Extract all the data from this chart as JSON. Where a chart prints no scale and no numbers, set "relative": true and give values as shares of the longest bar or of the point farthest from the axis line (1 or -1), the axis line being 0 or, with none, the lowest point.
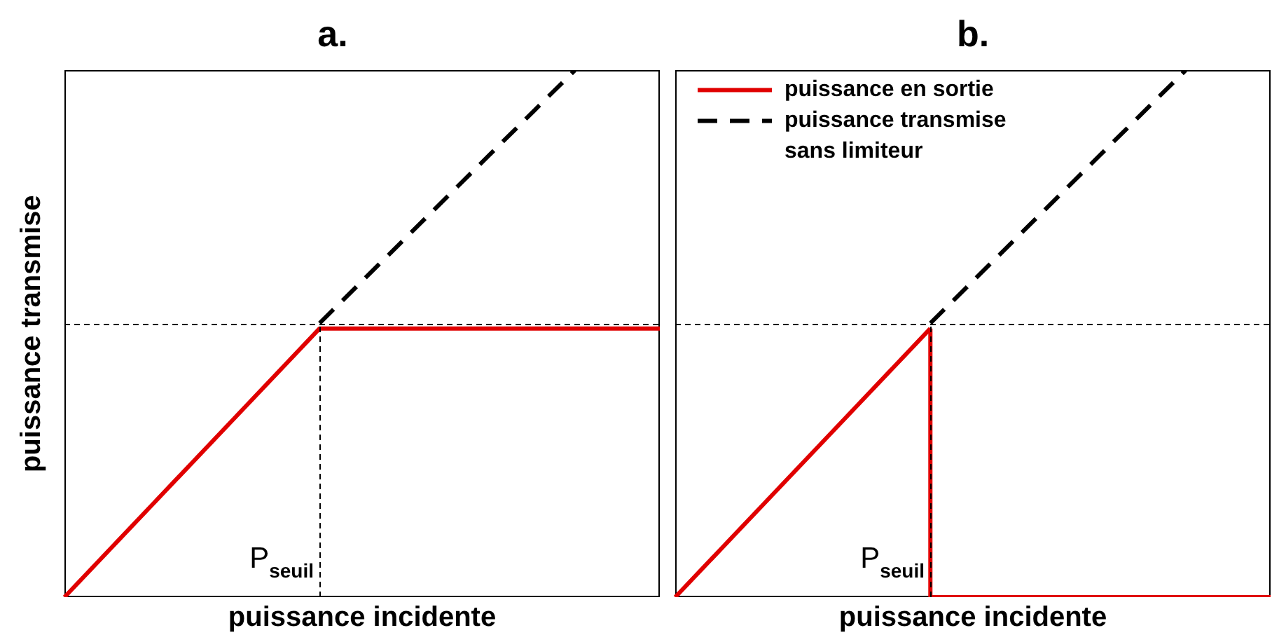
{
  "chart_data": [
    {
      "type": "line",
      "title": "a.",
      "xlabel": "puissance incidente",
      "ylabel": "puissance transmise",
      "categories": [
        null,
        null,
        null,
        null,
        null,
        null,
        null,
        null
      ],
      "relative": true,
      "marker": "none",
      "line_style": "solid",
      "grid": false,
      "tick_labels": false,
      "series": [
        {
          "color": "#e00000",
          "values": [
            0,
            0.17,
            0.34,
            0.51,
            0.51,
            0.51,
            0.51,
            0.51
          ]
        },
        {
          "color": "#000000",
          "line_style": "dashed",
          "values": [
            null,
            null,
            null,
            0.52,
            0.68,
            0.84,
            1,
            null
          ]
        }
      ],
      "ref_lines": [
        {
          "axis": "y",
          "value": 0.52,
          "color": "#000000",
          "line_style": "dashed"
        }
      ],
      "annotations": [
        "P$_{seuil}$"
      ]
    },
    {
      "type": "line",
      "title": "b.",
      "xlabel": "puissance incidente",
      "categories": [
        null,
        null,
        null,
        null,
        null,
        null,
        null,
        null
      ],
      "relative": true,
      "marker": "none",
      "line_style": "solid",
      "grid": false,
      "tick_labels": false,
      "legend": "top left",
      "series": [
        {
          "name": "puissance en sortie",
          "color": "#e00000",
          "values": [
            0,
            0.17,
            0.34,
            0.51,
            null,
            null,
            null,
            null
          ]
        },
        {
          "name": "puissance transmise sans limiteur",
          "color": "#000000",
          "line_style": "dashed",
          "values": [
            null,
            null,
            null,
            0.52,
            0.68,
            0.84,
            1,
            null
          ]
        },
        {
          "type": "step",
          "color": "#e00000",
          "values": [
            null,
            null,
            null,
            0.51,
            0,
            0,
            0,
            0
          ]
        }
      ],
      "ref_lines": [
        {
          "axis": "y",
          "value": 0.52,
          "color": "#000000",
          "line_style": "dashed"
        }
      ],
      "annotations": [
        "P$_{seuil}$"
      ]
    }
  ]
}
